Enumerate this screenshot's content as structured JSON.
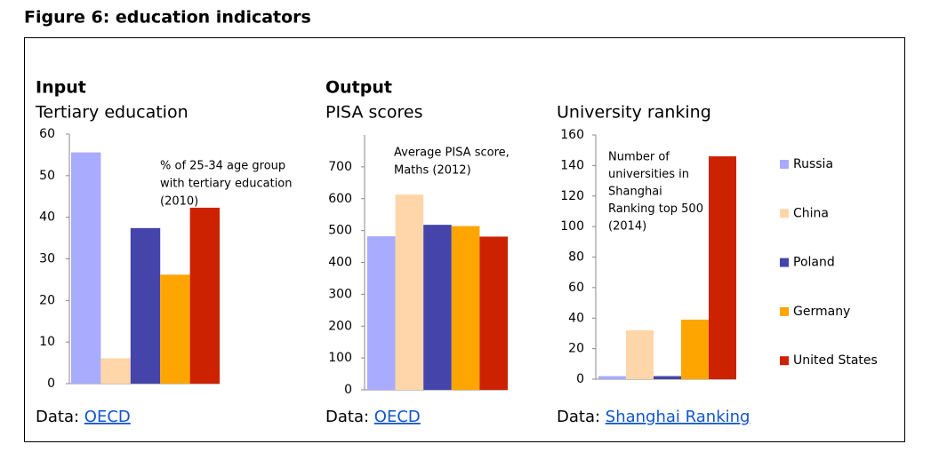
{
  "title": "Figure 6: education indicators",
  "chart_data": [
    {
      "type": "bar",
      "section": "Input",
      "title": "Tertiary education",
      "annotation": [
        "% of 25-34 age group",
        "with tertiary education",
        "(2010)"
      ],
      "categories": [
        "Russia",
        "China",
        "Poland",
        "Germany",
        "United States"
      ],
      "values": [
        55.6,
        6.1,
        37.4,
        26.2,
        42.3
      ],
      "colors": [
        "#a9abff",
        "#ffd6a9",
        "#4444aa",
        "#ffa500",
        "#cc2200"
      ],
      "ylim": [
        0,
        60
      ],
      "yticks": [
        0,
        10,
        20,
        30,
        40,
        50,
        60
      ],
      "source_label": "Data:",
      "source_link": "OECD"
    },
    {
      "type": "bar",
      "section": "Output",
      "title": "PISA scores",
      "annotation": [
        "Average PISA score,",
        "Maths (2012)"
      ],
      "categories": [
        "Russia",
        "China",
        "Poland",
        "Germany",
        "United States"
      ],
      "values": [
        482,
        613,
        518,
        514,
        481
      ],
      "colors": [
        "#a9abff",
        "#ffd6a9",
        "#4444aa",
        "#ffa500",
        "#cc2200"
      ],
      "ylim": [
        0,
        800
      ],
      "yticks": [
        0,
        100,
        200,
        300,
        400,
        500,
        600,
        700
      ],
      "source_label": "Data:",
      "source_link": "OECD"
    },
    {
      "type": "bar",
      "title": "University ranking",
      "annotation": [
        "Number of",
        "universities in",
        "Shanghai",
        "Ranking top 500",
        "(2014)"
      ],
      "categories": [
        "Russia",
        "China",
        "Poland",
        "Germany",
        "United States"
      ],
      "values": [
        2,
        32,
        2,
        39,
        146
      ],
      "colors": [
        "#a9abff",
        "#ffd6a9",
        "#4444aa",
        "#ffa500",
        "#cc2200"
      ],
      "ylim": [
        0,
        160
      ],
      "yticks": [
        0,
        20,
        40,
        60,
        80,
        100,
        120,
        140,
        160
      ],
      "legend": true,
      "source_label": "Data:",
      "source_link": "Shanghai Ranking"
    }
  ]
}
